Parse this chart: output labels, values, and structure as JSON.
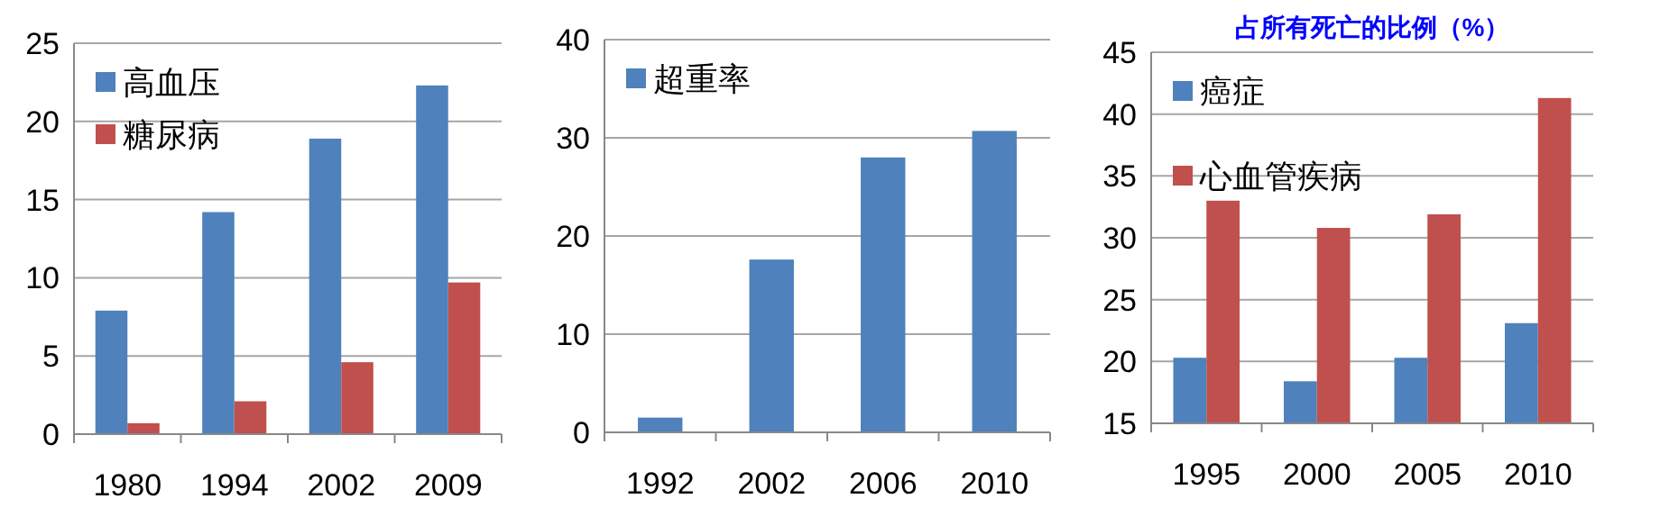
{
  "chart_data": [
    {
      "type": "bar",
      "categories": [
        "1980",
        "1994",
        "2002",
        "2009"
      ],
      "series": [
        {
          "name": "高血压",
          "color": "#4f81bd",
          "values": [
            7.9,
            14.2,
            18.9,
            22.3
          ]
        },
        {
          "name": "糖尿病",
          "color": "#c0504d",
          "values": [
            0.7,
            2.1,
            4.6,
            9.7
          ]
        }
      ],
      "ylim": [
        0,
        25
      ],
      "yticks": [
        0,
        5,
        10,
        15,
        20,
        25
      ],
      "grid": "y",
      "legend": "top left"
    },
    {
      "type": "bar",
      "categories": [
        "1992",
        "2002",
        "2006",
        "2010"
      ],
      "series": [
        {
          "name": "超重率",
          "color": "#4f81bd",
          "values": [
            1.5,
            17.6,
            28.0,
            30.7
          ]
        }
      ],
      "ylim": [
        0,
        40
      ],
      "yticks": [
        0,
        10,
        20,
        30,
        40
      ],
      "grid": "y",
      "legend": "top left"
    },
    {
      "type": "bar",
      "title": "占所有死亡的比例（%）",
      "categories": [
        "1995",
        "2000",
        "2005",
        "2010"
      ],
      "series": [
        {
          "name": "癌症",
          "color": "#4f81bd",
          "values": [
            20.3,
            18.4,
            20.3,
            23.1
          ]
        },
        {
          "name": "心血管疾病",
          "color": "#c0504d",
          "values": [
            33.0,
            30.8,
            31.9,
            41.3
          ]
        }
      ],
      "ylim": [
        15,
        45
      ],
      "yticks": [
        15,
        20,
        25,
        30,
        35,
        40,
        45
      ],
      "grid": "y",
      "legend": "top left"
    }
  ]
}
